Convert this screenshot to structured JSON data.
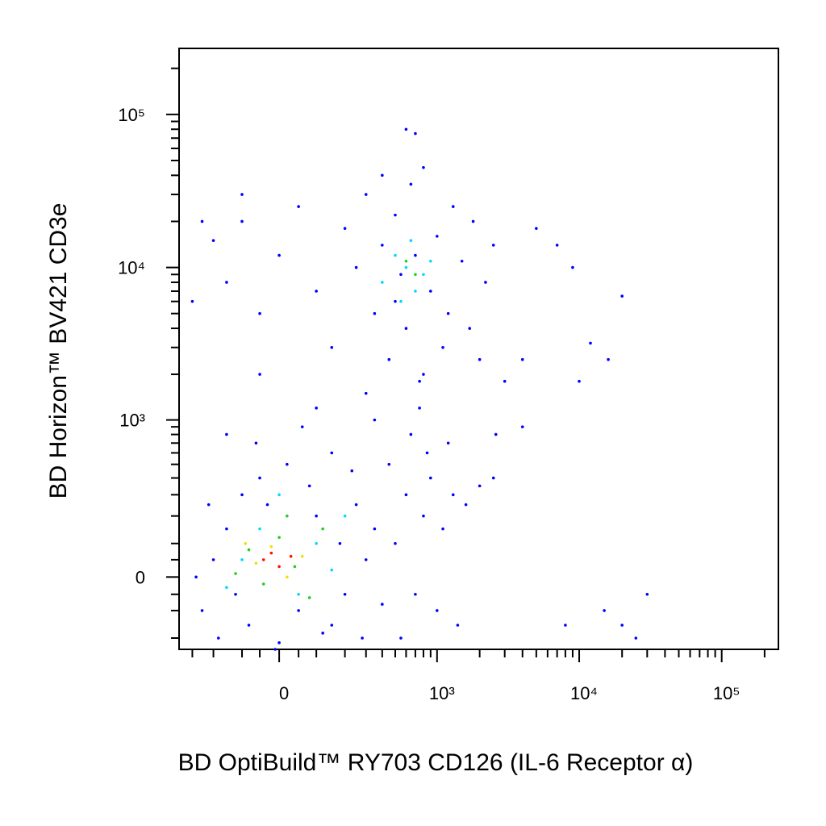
{
  "chart_data": {
    "type": "scatter",
    "x_label": "BD OptiBuild™ RY703 CD126 (IL-6 Receptor α)",
    "y_label": "BD Horizon™ BV421 CD3e",
    "xscale": "biexponential",
    "yscale": "biexponential",
    "xlim": [
      -380,
      250000
    ],
    "ylim": [
      -250,
      270000
    ],
    "xticks": [
      0,
      {
        "value": 1000,
        "label": "10³"
      },
      {
        "value": 10000,
        "label": "10⁴"
      },
      {
        "value": 100000,
        "label": "10⁵"
      }
    ],
    "yticks": [
      0,
      {
        "value": 1000,
        "label": "10³"
      },
      {
        "value": 10000,
        "label": "10⁴"
      },
      {
        "value": 100000,
        "label": "10⁵"
      }
    ],
    "xminorticks": [
      -300,
      -200,
      -100,
      -50,
      50,
      100,
      200,
      300,
      400,
      500,
      600,
      700,
      800,
      900,
      2000,
      3000,
      4000,
      5000,
      6000,
      7000,
      8000,
      9000,
      20000,
      30000,
      40000,
      50000,
      60000,
      70000,
      80000,
      90000,
      200000
    ],
    "yminorticks": [
      -200,
      -100,
      -50,
      50,
      100,
      200,
      300,
      400,
      500,
      600,
      700,
      800,
      900,
      2000,
      3000,
      4000,
      5000,
      6000,
      7000,
      8000,
      9000,
      20000,
      30000,
      40000,
      50000,
      60000,
      70000,
      80000,
      90000,
      200000
    ],
    "series": [
      {
        "color": "#0000ff",
        "x": [
          -250,
          -200,
          -180,
          -150,
          -120,
          -100,
          -80,
          -50,
          -30,
          0,
          20,
          50,
          80,
          100,
          120,
          150,
          180,
          200,
          250,
          300,
          350,
          -220,
          -60,
          60,
          150,
          230,
          -10,
          400,
          280,
          -280,
          500,
          600,
          700,
          800,
          900,
          1100,
          1300,
          1600,
          2000,
          450,
          650,
          750,
          1000,
          1400,
          2500,
          550,
          850,
          1200,
          3000,
          4000,
          8000,
          15000,
          20000,
          30000,
          25000,
          10000,
          12000,
          16000,
          20000,
          9000,
          7000,
          5000,
          4000,
          2600,
          -200,
          -150,
          -100,
          -50,
          0,
          50,
          100,
          150,
          200,
          250,
          300,
          350,
          400,
          450,
          500,
          550,
          600,
          650,
          700,
          800,
          900,
          1000,
          1200,
          1500,
          1800,
          2200,
          2500,
          1100,
          750,
          300,
          100,
          -50,
          -250,
          -300,
          400,
          800,
          600,
          700,
          -100,
          1300,
          1700,
          2000,
          500,
          350,
          -150
        ],
        "values": [
          -100,
          50,
          -200,
          150,
          -50,
          300,
          -150,
          400,
          250,
          -220,
          500,
          -100,
          350,
          200,
          -180,
          600,
          100,
          -50,
          250,
          50,
          150,
          250,
          700,
          900,
          -150,
          450,
          -250,
          -80,
          -200,
          0,
          100,
          300,
          -50,
          200,
          400,
          150,
          300,
          250,
          350,
          500,
          800,
          1200,
          -100,
          -150,
          400,
          -200,
          600,
          700,
          1800,
          900,
          -150,
          -100,
          -150,
          -50,
          -200,
          1800,
          3200,
          2500,
          6500,
          10000,
          14000,
          18000,
          2500,
          800,
          15000,
          8000,
          20000,
          5000,
          12000,
          25000,
          7000,
          3000,
          18000,
          10000,
          30000,
          5000,
          14000,
          2500,
          22000,
          9000,
          4000,
          35000,
          12000,
          2000,
          7000,
          16000,
          5000,
          11000,
          20000,
          8000,
          14000,
          3000,
          1800,
          1500,
          1200,
          2000,
          20000,
          6000,
          40000,
          45000,
          80000,
          75000,
          30000,
          25000,
          4000,
          2500,
          6000,
          1000,
          800
        ]
      },
      {
        "color": "#00d8ff",
        "x": [
          -100,
          -50,
          50,
          100,
          150,
          0,
          -150,
          200,
          600,
          700,
          500,
          800,
          650,
          550,
          900,
          400
        ],
        "values": [
          50,
          150,
          -50,
          100,
          20,
          300,
          -30,
          200,
          10000,
          7000,
          12000,
          9000,
          15000,
          6000,
          11000,
          8000
        ]
      },
      {
        "color": "#22cc22",
        "x": [
          -80,
          -40,
          0,
          40,
          80,
          -120,
          120,
          20,
          700,
          600
        ],
        "values": [
          80,
          -20,
          120,
          30,
          -60,
          10,
          150,
          200,
          9000,
          11000
        ]
      },
      {
        "color": "#f0e000",
        "x": [
          -60,
          -20,
          20,
          60,
          -90
        ],
        "values": [
          40,
          90,
          0,
          60,
          100
        ]
      },
      {
        "color": "#ff1000",
        "x": [
          -40,
          0,
          -20,
          30
        ],
        "values": [
          50,
          30,
          70,
          60
        ]
      }
    ]
  }
}
